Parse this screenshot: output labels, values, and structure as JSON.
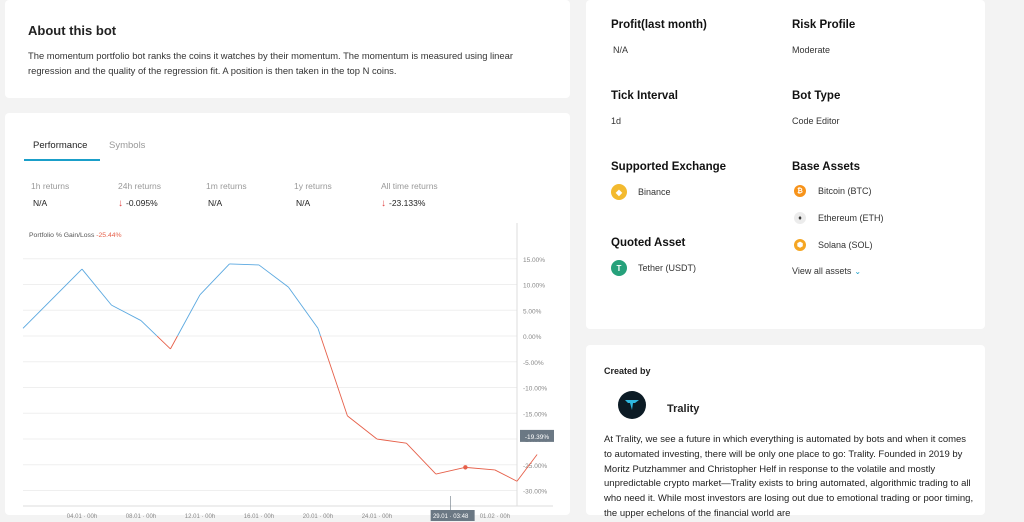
{
  "about": {
    "title": "About this bot",
    "description": "The momentum portfolio bot ranks the coins it watches by their momentum. The momentum is measured using linear regression and the quality of the regression fit. A position is then taken in the top N coins."
  },
  "performance": {
    "tabs": [
      "Performance",
      "Symbols"
    ],
    "returns": [
      {
        "label": "1h returns",
        "value": "N/A",
        "down": false
      },
      {
        "label": "24h returns",
        "value": "-0.095%",
        "down": true
      },
      {
        "label": "1m returns",
        "value": "N/A",
        "down": false
      },
      {
        "label": "1y returns",
        "value": "N/A",
        "down": false
      },
      {
        "label": "All time returns",
        "value": "-23.133%",
        "down": true
      }
    ],
    "chart_label": "Portfolio % Gain/Loss",
    "chart_value": "-25.44%",
    "colors": {
      "positive": "#5aa8e0",
      "negative": "#e6604a",
      "accent": "#1a9fc9"
    }
  },
  "chart_data": {
    "type": "line",
    "ylabel": "",
    "ylim": [
      -33,
      20
    ],
    "y_ticks": [
      "15.00%",
      "10.00%",
      "5.00%",
      "0.00%",
      "-5.00%",
      "-10.00%",
      "-15.00%",
      "-20.00%",
      "-25.00%",
      "-30.00%"
    ],
    "y_tick_values": [
      15,
      10,
      5,
      0,
      -5,
      -10,
      -15,
      -20,
      -25,
      -30
    ],
    "x_ticks": [
      "04.01 · 00h",
      "08.01 · 00h",
      "12.01 · 00h",
      "16.01 · 00h",
      "20.01 · 00h",
      "24.01 · 00h",
      "29.01 · 03:48",
      "01.02 · 00h"
    ],
    "x_tick_values": [
      4,
      8,
      12,
      16,
      20,
      24,
      29,
      32
    ],
    "xlim": [
      0,
      33.5
    ],
    "values_x": [
      0,
      4,
      6,
      8,
      10,
      12,
      14,
      16,
      18,
      20,
      22,
      24,
      26,
      28,
      30,
      32,
      33.5
    ],
    "values_y": [
      1.5,
      13,
      6,
      3,
      -2.5,
      8,
      14,
      13.8,
      9.5,
      1.5,
      -15.5,
      -20,
      -20.8,
      -26.8,
      -25.5,
      -26,
      -28.2
    ],
    "last_extra": [
      33.5,
      -28.2,
      35,
      -23
    ],
    "highlight_index": 14,
    "current_label": "-19.39%",
    "current_value": -19.39,
    "grid": true
  },
  "info": {
    "profit_label": "Profit(last month)",
    "profit_value": "N/A",
    "risk_label": "Risk Profile",
    "risk_value": "Moderate",
    "tick_label": "Tick Interval",
    "tick_value": "1d",
    "bottype_label": "Bot Type",
    "bottype_value": "Code Editor",
    "exchange_label": "Supported Exchange",
    "exchange_value": "Binance",
    "base_label": "Base Assets",
    "base_assets": [
      "Bitcoin (BTC)",
      "Ethereum (ETH)",
      "Solana (SOL)"
    ],
    "quoted_label": "Quoted Asset",
    "quoted_value": "Tether (USDT)",
    "view_all": "View all assets"
  },
  "creator": {
    "heading": "Created by",
    "name": "Trality",
    "description": "At Trality, we see a future in which everything is automated by bots and when it comes to automated investing, there will be only one place to go: Trality. Founded in 2019 by Moritz Putzhammer and Christopher Helf in response to the volatile and mostly unpredictable crypto market—Trality exists to bring automated, algorithmic trading to all who need it. While most investors are losing out due to emotional trading or poor timing, the upper echelons of the financial world are"
  }
}
